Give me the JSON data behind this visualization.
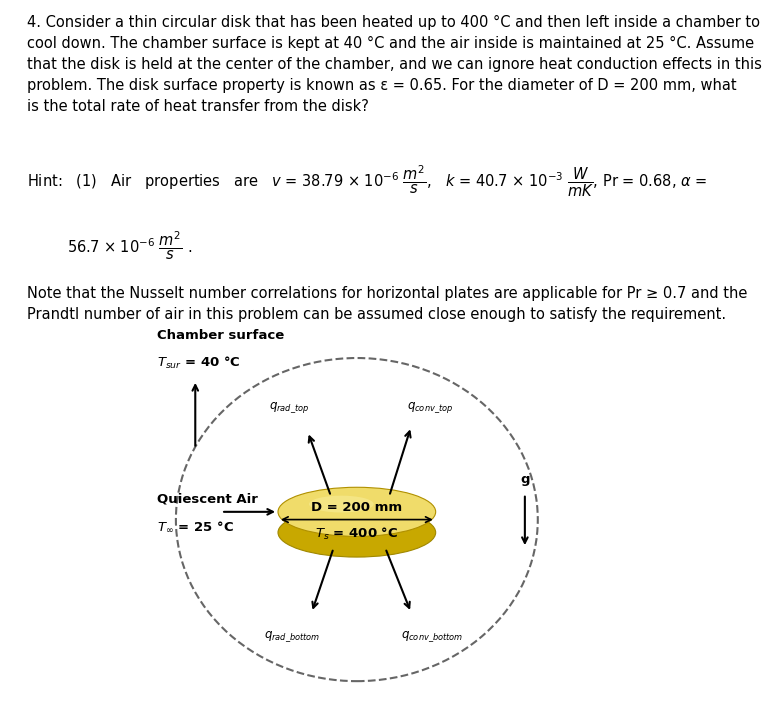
{
  "problem_text": "4. Consider a thin circular disk that has been heated up to 400 °C and then left inside a chamber to\ncool down. The chamber surface is kept at 40 °C and the air inside is maintained at 25 °C. Assume\nthat the disk is held at the center of the chamber, and we can ignore heat conduction effects in this\nproblem. The disk surface property is known as ε = 0.65. For the diameter of D = 200 mm, what\nis the total rate of heat transfer from the disk?",
  "note_text": "Note that the Nusselt number correlations for horizontal plates are applicable for Pr ≥ 0.7 and the\nPrandtl number of air in this problem can be assumed close enough to satisfy the requirement.",
  "disk_color_top": "#F0DC6A",
  "disk_color_side": "#C8A800",
  "disk_highlight": "#F8EE9A",
  "chamber_dash_color": "#666666",
  "bg_color": "#ffffff",
  "text_color": "#000000",
  "font_size_body": 10.5,
  "font_size_diagram": 9.5,
  "font_size_small": 8.5
}
